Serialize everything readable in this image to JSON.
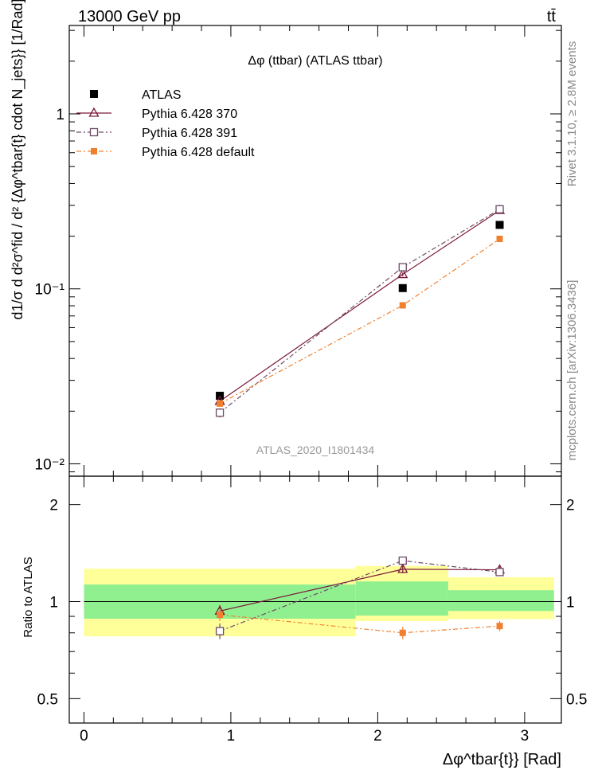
{
  "header": {
    "left": "13000 GeV pp",
    "right": "tt̄"
  },
  "side": {
    "rivet": "Rivet 3.1.10, ≥ 2.8M events",
    "mcplots": "mcplots.cern.ch [arXiv:1306.3436]"
  },
  "colors": {
    "atlas": "#000000",
    "p370": "#7a1a3a",
    "p391": "#6e4a66",
    "pdefault": "#f08030",
    "band_inner": "#90f090",
    "band_outer": "#ffff99"
  },
  "chart_data": [
    {
      "type": "scatter",
      "panel": "main",
      "title": "Δφ (ttbar) (ATLAS ttbar)",
      "watermark": "ATLAS_2020_I1801434",
      "ylabel": "d1/σ d d²σ^fid / d² {Δφ^tbar{t} cdot N_jets}} [1/Rad]",
      "yscale": "log",
      "ylim": [
        0.0085,
        3.2
      ],
      "xlim": [
        -0.1,
        3.25
      ],
      "y_ticks": [
        {
          "value": 1,
          "label": "1"
        },
        {
          "value": 0.1,
          "label": "10⁻¹"
        },
        {
          "value": 0.01,
          "label": "10⁻²"
        }
      ],
      "legend_position": "top-left",
      "x": [
        0.925,
        2.17,
        2.83
      ],
      "series": [
        {
          "name": "ATLAS",
          "key": "atlas",
          "values": [
            0.0245,
            0.101,
            0.232
          ],
          "errors": [
            0.001,
            0.003,
            0.005
          ]
        },
        {
          "name": "Pythia 6.428 370",
          "key": "p370",
          "values": [
            0.0228,
            0.121,
            0.281
          ],
          "errors": [
            0.0008,
            0.003,
            0.005
          ]
        },
        {
          "name": "Pythia 6.428 391",
          "key": "p391",
          "values": [
            0.0196,
            0.133,
            0.285
          ],
          "errors": [
            0.0012,
            0.003,
            0.005
          ]
        },
        {
          "name": "Pythia 6.428 default",
          "key": "pdefault",
          "values": [
            0.0221,
            0.0805,
            0.193
          ],
          "errors": [
            0.0008,
            0.003,
            0.004
          ]
        }
      ]
    },
    {
      "type": "scatter",
      "panel": "ratio",
      "ylabel": "Ratio to ATLAS",
      "xlabel": "Δφ^tbar{t}} [Rad]",
      "yscale": "log",
      "ylim": [
        0.42,
        2.45
      ],
      "xlim": [
        -0.1,
        3.25
      ],
      "y_ticks": [
        {
          "value": 2,
          "label": "2"
        },
        {
          "value": 1,
          "label": "1"
        },
        {
          "value": 0.5,
          "label": "0.5"
        }
      ],
      "x_ticks": [
        {
          "value": 0,
          "label": "0"
        },
        {
          "value": 1,
          "label": "1"
        },
        {
          "value": 2,
          "label": "2"
        },
        {
          "value": 3,
          "label": "3"
        }
      ],
      "bands": [
        {
          "x0": 0.0,
          "x1": 1.85,
          "inner": [
            0.885,
            1.13
          ],
          "outer": [
            0.78,
            1.265
          ]
        },
        {
          "x0": 1.85,
          "x1": 2.48,
          "inner": [
            0.905,
            1.155
          ],
          "outer": [
            0.87,
            1.29
          ]
        },
        {
          "x0": 2.48,
          "x1": 3.2,
          "inner": [
            0.935,
            1.085
          ],
          "outer": [
            0.882,
            1.19
          ]
        }
      ],
      "x": [
        0.925,
        2.17,
        2.83
      ],
      "series": [
        {
          "name": "Pythia 6.428 370",
          "key": "p370",
          "values": [
            0.935,
            1.26,
            1.255
          ],
          "errors": [
            0.04,
            0.035,
            0.03
          ]
        },
        {
          "name": "Pythia 6.428 391",
          "key": "p391",
          "values": [
            0.81,
            1.34,
            1.235
          ],
          "errors": [
            0.045,
            0.04,
            0.03
          ]
        },
        {
          "name": "Pythia 6.428 default",
          "key": "pdefault",
          "values": [
            0.91,
            0.8,
            0.84
          ],
          "errors": [
            0.04,
            0.035,
            0.03
          ]
        }
      ]
    }
  ]
}
